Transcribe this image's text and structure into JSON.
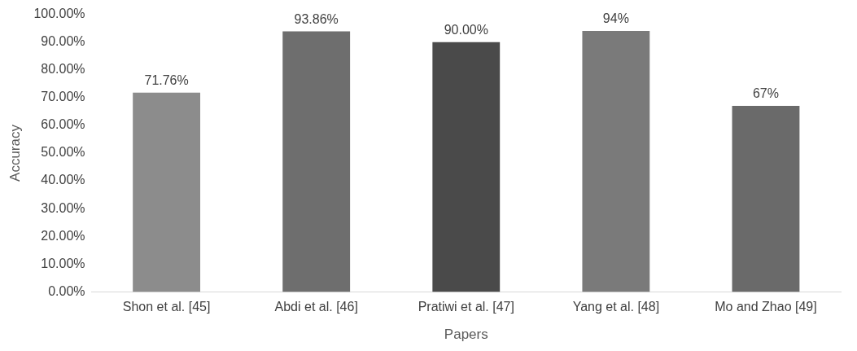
{
  "chart_data": {
    "type": "bar",
    "xlabel": "Papers",
    "ylabel": "Accuracy",
    "categories": [
      "Shon et al. [45]",
      "Abdi et al. [46]",
      "Pratiwi et al. [47]",
      "Yang et al. [48]",
      "Mo and Zhao [49]"
    ],
    "values": [
      71.76,
      93.86,
      90,
      94,
      67
    ],
    "colors": [
      "#8c8c8c",
      "#6e6e6e",
      "#4a4a4a",
      "#7a7a7a",
      "#6a6a6a"
    ],
    "value_labels": [
      "71.76%",
      "93.86%",
      "90.00%",
      "94%",
      "67%"
    ],
    "ylim": [
      0,
      100
    ],
    "yticks": [
      {
        "value": 0,
        "label": "0.00%"
      },
      {
        "value": 10,
        "label": "10.00%"
      },
      {
        "value": 20,
        "label": "20.00%"
      },
      {
        "value": 30,
        "label": "30.00%"
      },
      {
        "value": 40,
        "label": "40.00%"
      },
      {
        "value": 50,
        "label": "50.00%"
      },
      {
        "value": 60,
        "label": "60.00%"
      },
      {
        "value": 70,
        "label": "70.00%"
      },
      {
        "value": 80,
        "label": "80.00%"
      },
      {
        "value": 90,
        "label": "90.00%"
      },
      {
        "value": 100,
        "label": "100.00%"
      }
    ],
    "grid": false,
    "legend": false
  }
}
